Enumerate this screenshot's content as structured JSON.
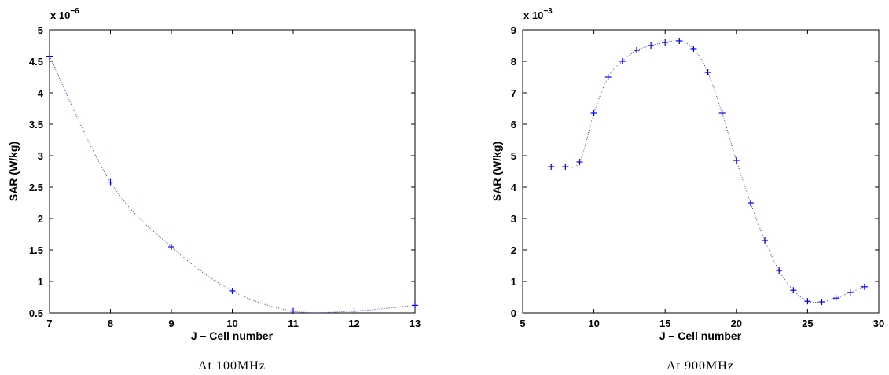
{
  "chart_data": [
    {
      "type": "line",
      "caption": "At 100MHz",
      "xlabel": "J – Cell number",
      "ylabel": "SAR (W/kg)",
      "exponent_base": "x 10",
      "exponent_power": "−6",
      "xlim": [
        7,
        13
      ],
      "ylim": [
        0.5,
        5
      ],
      "xticks": [
        7,
        8,
        9,
        10,
        11,
        12,
        13
      ],
      "yticks": [
        0.5,
        1,
        1.5,
        2,
        2.5,
        3,
        3.5,
        4,
        4.5,
        5
      ],
      "xtick_labels": [
        "7",
        "8",
        "9",
        "10",
        "11",
        "12",
        "13"
      ],
      "ytick_labels": [
        "0.5",
        "1",
        "1.5",
        "2",
        "2.5",
        "3",
        "3.5",
        "4",
        "4.5",
        "5"
      ],
      "series": [
        {
          "x": [
            7,
            8,
            9,
            10,
            11,
            12,
            13
          ],
          "y": [
            4.58,
            2.58,
            1.55,
            0.85,
            0.53,
            0.53,
            0.62
          ],
          "color": "#0000ff",
          "marker": "+",
          "line_style": "dotted"
        }
      ]
    },
    {
      "type": "line",
      "caption": "At 900MHz",
      "xlabel": "J – Cell number",
      "ylabel": "SAR (W/kg)",
      "exponent_base": "x 10",
      "exponent_power": "−3",
      "xlim": [
        5,
        30
      ],
      "ylim": [
        0,
        9
      ],
      "xticks": [
        5,
        10,
        15,
        20,
        25,
        30
      ],
      "yticks": [
        0,
        1,
        2,
        3,
        4,
        5,
        6,
        7,
        8,
        9
      ],
      "xtick_labels": [
        "5",
        "10",
        "15",
        "20",
        "25",
        "30"
      ],
      "ytick_labels": [
        "0",
        "1",
        "2",
        "3",
        "4",
        "5",
        "6",
        "7",
        "8",
        "9"
      ],
      "series": [
        {
          "x": [
            7,
            8,
            9,
            10,
            11,
            12,
            13,
            14,
            15,
            16,
            17,
            18,
            19,
            20,
            21,
            22,
            23,
            24,
            25,
            26,
            27,
            28,
            29
          ],
          "y": [
            4.65,
            4.65,
            4.8,
            6.35,
            7.5,
            8.0,
            8.35,
            8.5,
            8.6,
            8.65,
            8.4,
            7.65,
            6.35,
            4.85,
            3.5,
            2.3,
            1.35,
            0.72,
            0.37,
            0.35,
            0.47,
            0.65,
            0.83
          ],
          "color": "#0000ff",
          "marker": "+",
          "line_style": "dotted"
        }
      ]
    }
  ]
}
